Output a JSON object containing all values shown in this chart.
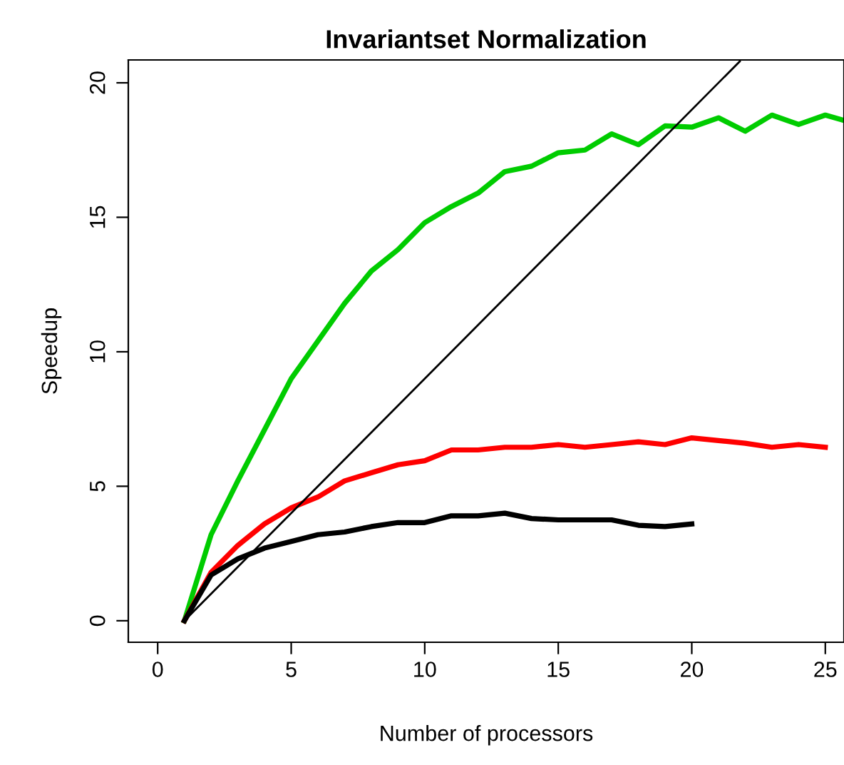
{
  "chart_data": {
    "type": "line",
    "title": "Invariantset Normalization",
    "xlabel": "Number of processors",
    "ylabel": "Speedup",
    "xlim": [
      -1.1,
      25.7
    ],
    "ylim": [
      -0.8,
      20.85
    ],
    "xticks": [
      0,
      5,
      10,
      15,
      20,
      25
    ],
    "yticks": [
      0,
      5,
      10,
      15,
      20
    ],
    "grid": false,
    "legend": false,
    "marker": "none",
    "line_style": "solid",
    "series": [
      {
        "color": "#00cc00",
        "x": [
          1,
          2,
          3,
          4,
          5,
          6,
          7,
          8,
          9,
          10,
          11,
          12,
          13,
          14,
          15,
          16,
          17,
          18,
          19,
          20,
          21,
          22,
          23,
          24,
          25,
          25.7
        ],
        "values": [
          0,
          3.2,
          5.2,
          7.1,
          9.0,
          10.4,
          11.8,
          13.0,
          13.8,
          14.8,
          15.4,
          15.9,
          16.7,
          16.9,
          17.4,
          17.5,
          18.1,
          17.7,
          18.4,
          18.35,
          18.7,
          18.2,
          18.8,
          18.45,
          18.8,
          18.6
        ]
      },
      {
        "color": "#ff0000",
        "x": [
          1,
          2,
          3,
          4,
          5,
          6,
          7,
          8,
          9,
          10,
          11,
          12,
          13,
          14,
          15,
          16,
          17,
          18,
          19,
          20,
          21,
          22,
          23,
          24,
          25
        ],
        "values": [
          0,
          1.8,
          2.8,
          3.6,
          4.2,
          4.6,
          5.2,
          5.5,
          5.8,
          5.95,
          6.35,
          6.35,
          6.45,
          6.45,
          6.55,
          6.45,
          6.55,
          6.65,
          6.55,
          6.8,
          6.7,
          6.6,
          6.45,
          6.55,
          6.45
        ]
      },
      {
        "color": "#000000",
        "x": [
          1,
          2,
          3,
          4,
          5,
          6,
          7,
          8,
          9,
          10,
          11,
          12,
          13,
          14,
          15,
          16,
          17,
          18,
          19,
          20
        ],
        "values": [
          0,
          1.7,
          2.3,
          2.7,
          2.95,
          3.2,
          3.3,
          3.5,
          3.65,
          3.65,
          3.9,
          3.9,
          4.0,
          3.8,
          3.75,
          3.75,
          3.75,
          3.55,
          3.5,
          3.6
        ]
      },
      {
        "color": "#000000",
        "x": [
          1,
          21.8
        ],
        "values": [
          0,
          20.8
        ]
      }
    ]
  }
}
